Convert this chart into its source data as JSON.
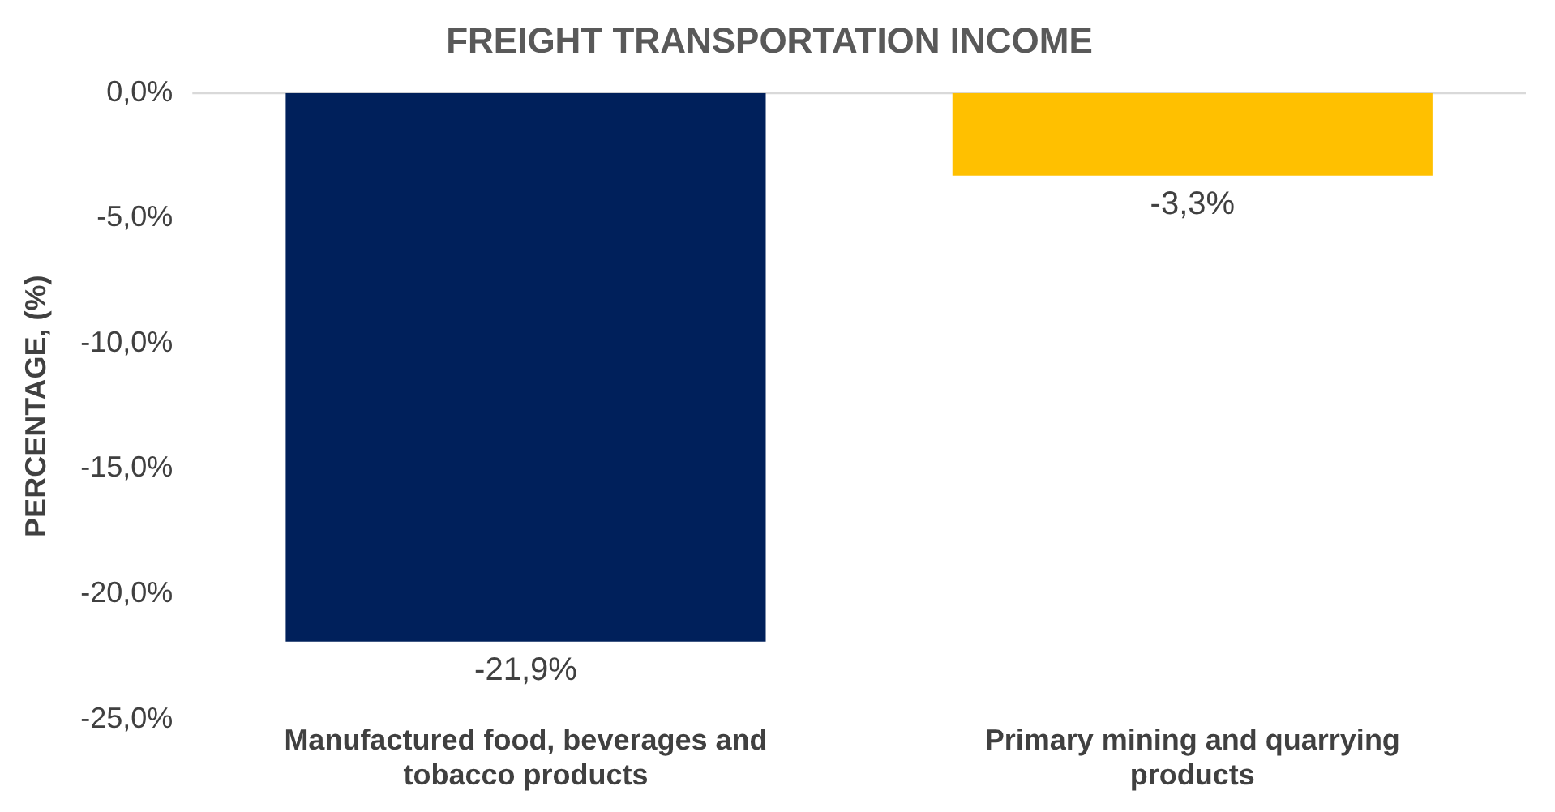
{
  "chart_data": {
    "type": "bar",
    "title": "FREIGHT TRANSPORTATION INCOME",
    "ylabel": "PERCENTAGE, (%)",
    "categories": [
      "Manufactured food, beverages and tobacco products",
      "Primary mining and quarrying products"
    ],
    "values": [
      -21.9,
      -3.3
    ],
    "colors": [
      "#00205b",
      "#ffc000"
    ],
    "value_labels": [
      "-21,9%",
      "-3,3%"
    ],
    "ylim": [
      -25,
      0
    ],
    "yticks": [
      {
        "value": 0,
        "label": "0,0%"
      },
      {
        "value": -5,
        "label": "-5,0%"
      },
      {
        "value": -10,
        "label": "-10,0%"
      },
      {
        "value": -15,
        "label": "-15,0%"
      },
      {
        "value": -20,
        "label": "-20,0%"
      },
      {
        "value": -25,
        "label": "-25,0%"
      }
    ],
    "grid": false,
    "legend": false
  }
}
